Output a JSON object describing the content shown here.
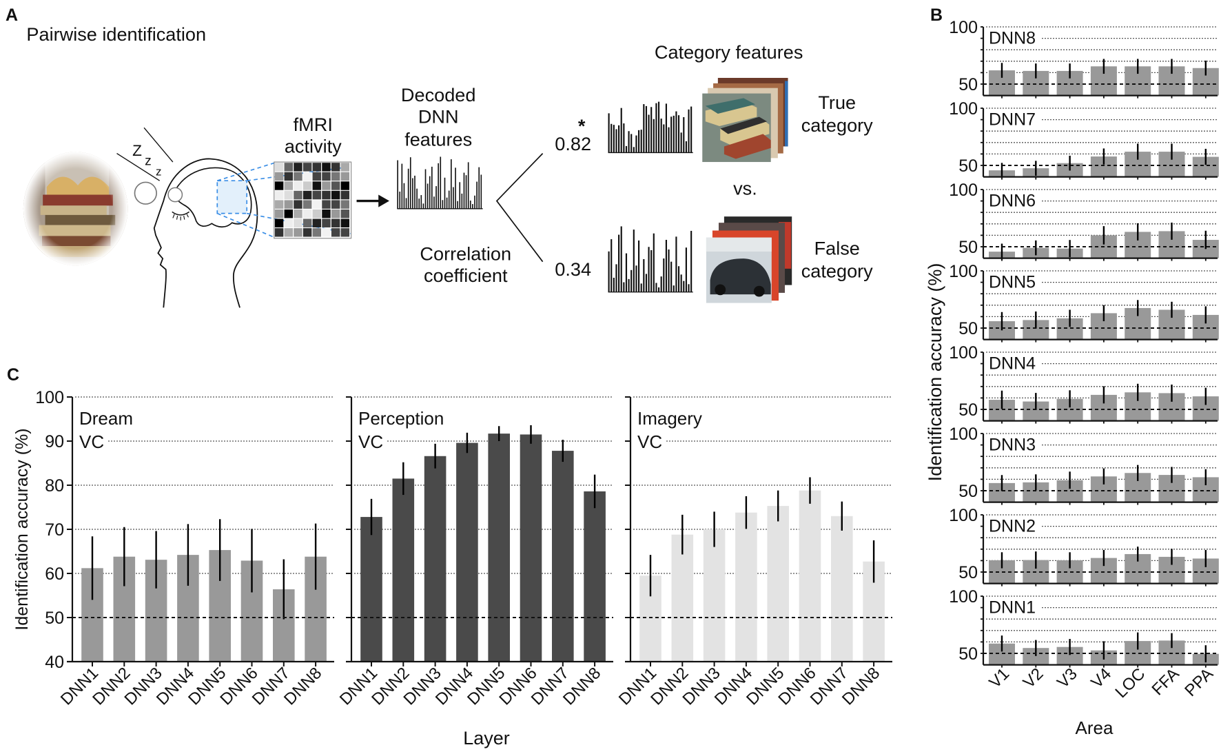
{
  "panel_labels": {
    "a": "A",
    "b": "B",
    "c": "C"
  },
  "panel_a": {
    "title": "Pairwise identification",
    "fmri_label": [
      "fMRI",
      "activity"
    ],
    "decoded_label": [
      "Decoded",
      "DNN",
      "features"
    ],
    "correlation_label": [
      "Correlation",
      "coefficient"
    ],
    "category_features_label": "Category features",
    "true_corr": "0.82",
    "false_corr": "0.34",
    "significance_mark": "*",
    "true_label": [
      "True",
      "category"
    ],
    "false_label": [
      "False",
      "category"
    ],
    "vs_label": "vs.",
    "sleep_label": [
      "Z",
      "z",
      "z"
    ],
    "highlight_color": "#3a8ee6"
  },
  "panel_c": {
    "ylabel": "Identification accuracy (%)",
    "xlabel": "Layer"
  },
  "panel_b": {
    "ylabel": "Identification accuracy (%)",
    "xlabel": "Area"
  },
  "chart_data": [
    {
      "type": "bar",
      "panel": "C",
      "title": "Dream",
      "region": "VC",
      "categories": [
        "DNN1",
        "DNN2",
        "DNN3",
        "DNN4",
        "DNN5",
        "DNN6",
        "DNN7",
        "DNN8"
      ],
      "values": [
        61.2,
        63.8,
        63.1,
        64.2,
        65.3,
        62.9,
        56.4,
        63.8
      ],
      "errors": [
        7.2,
        6.7,
        6.5,
        7.0,
        7.0,
        7.2,
        6.8,
        7.5
      ],
      "color": "#999999",
      "ylim": [
        40,
        100
      ],
      "yticks": [
        40,
        50,
        60,
        70,
        80,
        90,
        100
      ],
      "chance_level": 50,
      "grid": true
    },
    {
      "type": "bar",
      "panel": "C",
      "title": "Perception",
      "region": "VC",
      "categories": [
        "DNN1",
        "DNN2",
        "DNN3",
        "DNN4",
        "DNN5",
        "DNN6",
        "DNN7",
        "DNN8"
      ],
      "values": [
        72.8,
        81.5,
        86.6,
        89.6,
        91.7,
        91.5,
        87.8,
        78.6
      ],
      "errors": [
        4.1,
        3.7,
        2.8,
        2.3,
        1.7,
        2.1,
        2.5,
        3.8
      ],
      "color": "#4a4a4a",
      "ylim": [
        40,
        100
      ],
      "chance_level": 50,
      "grid": true
    },
    {
      "type": "bar",
      "panel": "C",
      "title": "Imagery",
      "region": "VC",
      "categories": [
        "DNN1",
        "DNN2",
        "DNN3",
        "DNN4",
        "DNN5",
        "DNN6",
        "DNN7",
        "DNN8"
      ],
      "values": [
        59.5,
        68.8,
        70.0,
        73.8,
        75.3,
        78.8,
        73.0,
        62.7
      ],
      "errors": [
        4.7,
        4.5,
        4.0,
        3.7,
        3.5,
        3.0,
        3.3,
        4.8
      ],
      "color": "#e3e3e3",
      "ylim": [
        40,
        100
      ],
      "chance_level": 50,
      "grid": true
    },
    {
      "type": "bar",
      "panel": "B",
      "categories": [
        "V1",
        "V2",
        "V3",
        "V4",
        "LOC",
        "FFA",
        "PPA"
      ],
      "color": "#999999",
      "ylim": [
        40,
        100
      ],
      "ytick_labels": [
        "100",
        "50"
      ],
      "chance_level": 50,
      "grid": true,
      "subplots": [
        {
          "title": "DNN8",
          "values": [
            62.0,
            61.5,
            61.5,
            65.5,
            65.5,
            65.5,
            64.0
          ],
          "errors": [
            6.5,
            6.5,
            6.5,
            6.5,
            6.5,
            6.5,
            6.5
          ]
        },
        {
          "title": "DNN7",
          "values": [
            45.7,
            47.5,
            52.0,
            57.8,
            62.0,
            62.0,
            57.5
          ],
          "errors": [
            6.5,
            6.5,
            6.5,
            7.0,
            7.0,
            7.0,
            7.0
          ]
        },
        {
          "title": "DNN6",
          "values": [
            45.7,
            49.0,
            48.4,
            60.0,
            63.0,
            63.6,
            56.0
          ],
          "errors": [
            7.0,
            6.5,
            7.5,
            8.0,
            7.5,
            7.5,
            8.0
          ]
        },
        {
          "title": "DNN5",
          "values": [
            56.0,
            57.0,
            58.5,
            63.0,
            67.5,
            66.0,
            61.5
          ],
          "errors": [
            8.0,
            7.5,
            7.5,
            7.0,
            7.0,
            7.0,
            7.5
          ]
        },
        {
          "title": "DNN4",
          "values": [
            58.4,
            56.9,
            59.2,
            62.7,
            64.9,
            64.2,
            61.4
          ],
          "errors": [
            8.0,
            7.5,
            7.5,
            7.5,
            7.5,
            7.5,
            7.5
          ]
        },
        {
          "title": "DNN3",
          "values": [
            56.7,
            57.3,
            59.2,
            62.5,
            65.5,
            63.8,
            61.8
          ],
          "errors": [
            7.0,
            7.0,
            7.5,
            7.0,
            7.0,
            7.0,
            7.0
          ]
        },
        {
          "title": "DNN2",
          "values": [
            60.3,
            60.5,
            60.3,
            62.3,
            65.7,
            63.3,
            61.8
          ],
          "errors": [
            7.0,
            7.5,
            7.0,
            7.0,
            6.5,
            7.0,
            7.5
          ]
        },
        {
          "title": "DNN1",
          "values": [
            58.6,
            54.7,
            55.6,
            52.6,
            60.8,
            61.2,
            49.6
          ],
          "errors": [
            7.0,
            7.0,
            7.0,
            8.0,
            7.5,
            6.5,
            7.5
          ]
        }
      ]
    }
  ]
}
